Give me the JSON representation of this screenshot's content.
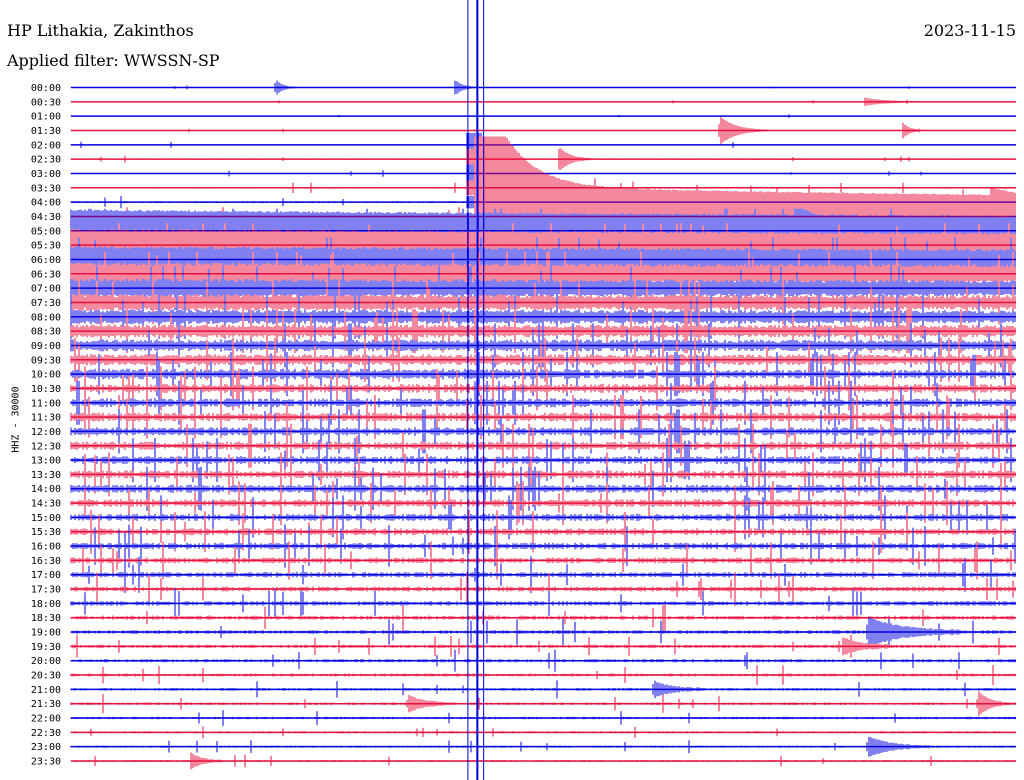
{
  "header": {
    "station": "HP Lithakia, Zakinthos",
    "filter": "Applied filter: WWSSN-SP",
    "date": "2023-11-15"
  },
  "chart_data": {
    "type": "line",
    "title": "HP Lithakia, Zakinthos",
    "subtitle": "Applied filter: WWSSN-SP",
    "date": "2023-11-15",
    "ylabel": "HHZ - 30000",
    "row_interval_minutes": 30,
    "rows": [
      "00:00",
      "00:30",
      "01:00",
      "01:30",
      "02:00",
      "02:30",
      "03:00",
      "03:30",
      "04:00",
      "04:30",
      "05:00",
      "05:30",
      "06:00",
      "06:30",
      "07:00",
      "07:30",
      "08:00",
      "08:30",
      "09:00",
      "09:30",
      "10:00",
      "10:30",
      "11:00",
      "11:30",
      "12:00",
      "12:30",
      "13:00",
      "13:30",
      "14:00",
      "14:30",
      "15:00",
      "15:30",
      "16:00",
      "16:30",
      "17:00",
      "17:30",
      "18:00",
      "18:30",
      "19:00",
      "19:30",
      "20:00",
      "20:30",
      "21:00",
      "21:30",
      "22:00",
      "22:30",
      "23:00",
      "23:30"
    ],
    "series_colors": [
      "#0000e0",
      "#e8103c"
    ],
    "noise_levels": [
      0.3,
      0.3,
      0.3,
      0.3,
      0.5,
      0.6,
      0.5,
      0.8,
      1,
      1.5,
      2.2,
      3,
      3.5,
      4,
      4.2,
      4.5,
      4.5,
      4.5,
      4.5,
      4.5,
      4.5,
      4.5,
      4.5,
      4.5,
      4.3,
      4.2,
      4,
      4,
      4,
      3.8,
      3.6,
      3.5,
      3.3,
      3,
      2.8,
      2.6,
      2.4,
      2.2,
      2,
      1.8,
      1.7,
      1.6,
      1.5,
      1.4,
      1.3,
      1.2,
      1.1,
      1
    ],
    "events": [
      {
        "row": 0,
        "minute": 6.5,
        "amplitude": 8,
        "duration_s": 40
      },
      {
        "row": 0,
        "minute": 12.2,
        "amplitude": 8,
        "duration_s": 40
      },
      {
        "row": 1,
        "minute": 25.2,
        "amplitude": 4,
        "duration_s": 120
      },
      {
        "row": 3,
        "minute": 20.6,
        "amplitude": 14,
        "duration_s": 90
      },
      {
        "row": 3,
        "minute": 26.4,
        "amplitude": 8,
        "duration_s": 40
      },
      {
        "row": 5,
        "minute": 15.5,
        "amplitude": 12,
        "duration_s": 60
      },
      {
        "row": 7,
        "minute": 15.0,
        "amplitude": 10,
        "duration_s": 80
      },
      {
        "row": 9,
        "minute": 29.2,
        "amplitude": 8,
        "duration_s": 120
      },
      {
        "row": 10,
        "minute": 23.0,
        "amplitude": 22,
        "duration_s": 40
      },
      {
        "row": 38,
        "minute": 25.3,
        "amplitude": 14,
        "duration_s": 180
      },
      {
        "row": 39,
        "minute": 24.5,
        "amplitude": 8,
        "duration_s": 100
      },
      {
        "row": 42,
        "minute": 18.5,
        "amplitude": 8,
        "duration_s": 90
      },
      {
        "row": 43,
        "minute": 10.7,
        "amplitude": 8,
        "duration_s": 90
      },
      {
        "row": 43,
        "minute": 28.8,
        "amplitude": 12,
        "duration_s": 60
      },
      {
        "row": 46,
        "minute": 25.3,
        "amplitude": 10,
        "duration_s": 120
      },
      {
        "row": 47,
        "minute": 3.8,
        "amplitude": 8,
        "duration_s": 60
      }
    ],
    "main_event": {
      "row": 9,
      "minute": 12.8,
      "amplitude": 140,
      "duration_s": 120
    },
    "vertical_markers_minute": [
      12.6,
      12.9,
      13.1
    ]
  }
}
